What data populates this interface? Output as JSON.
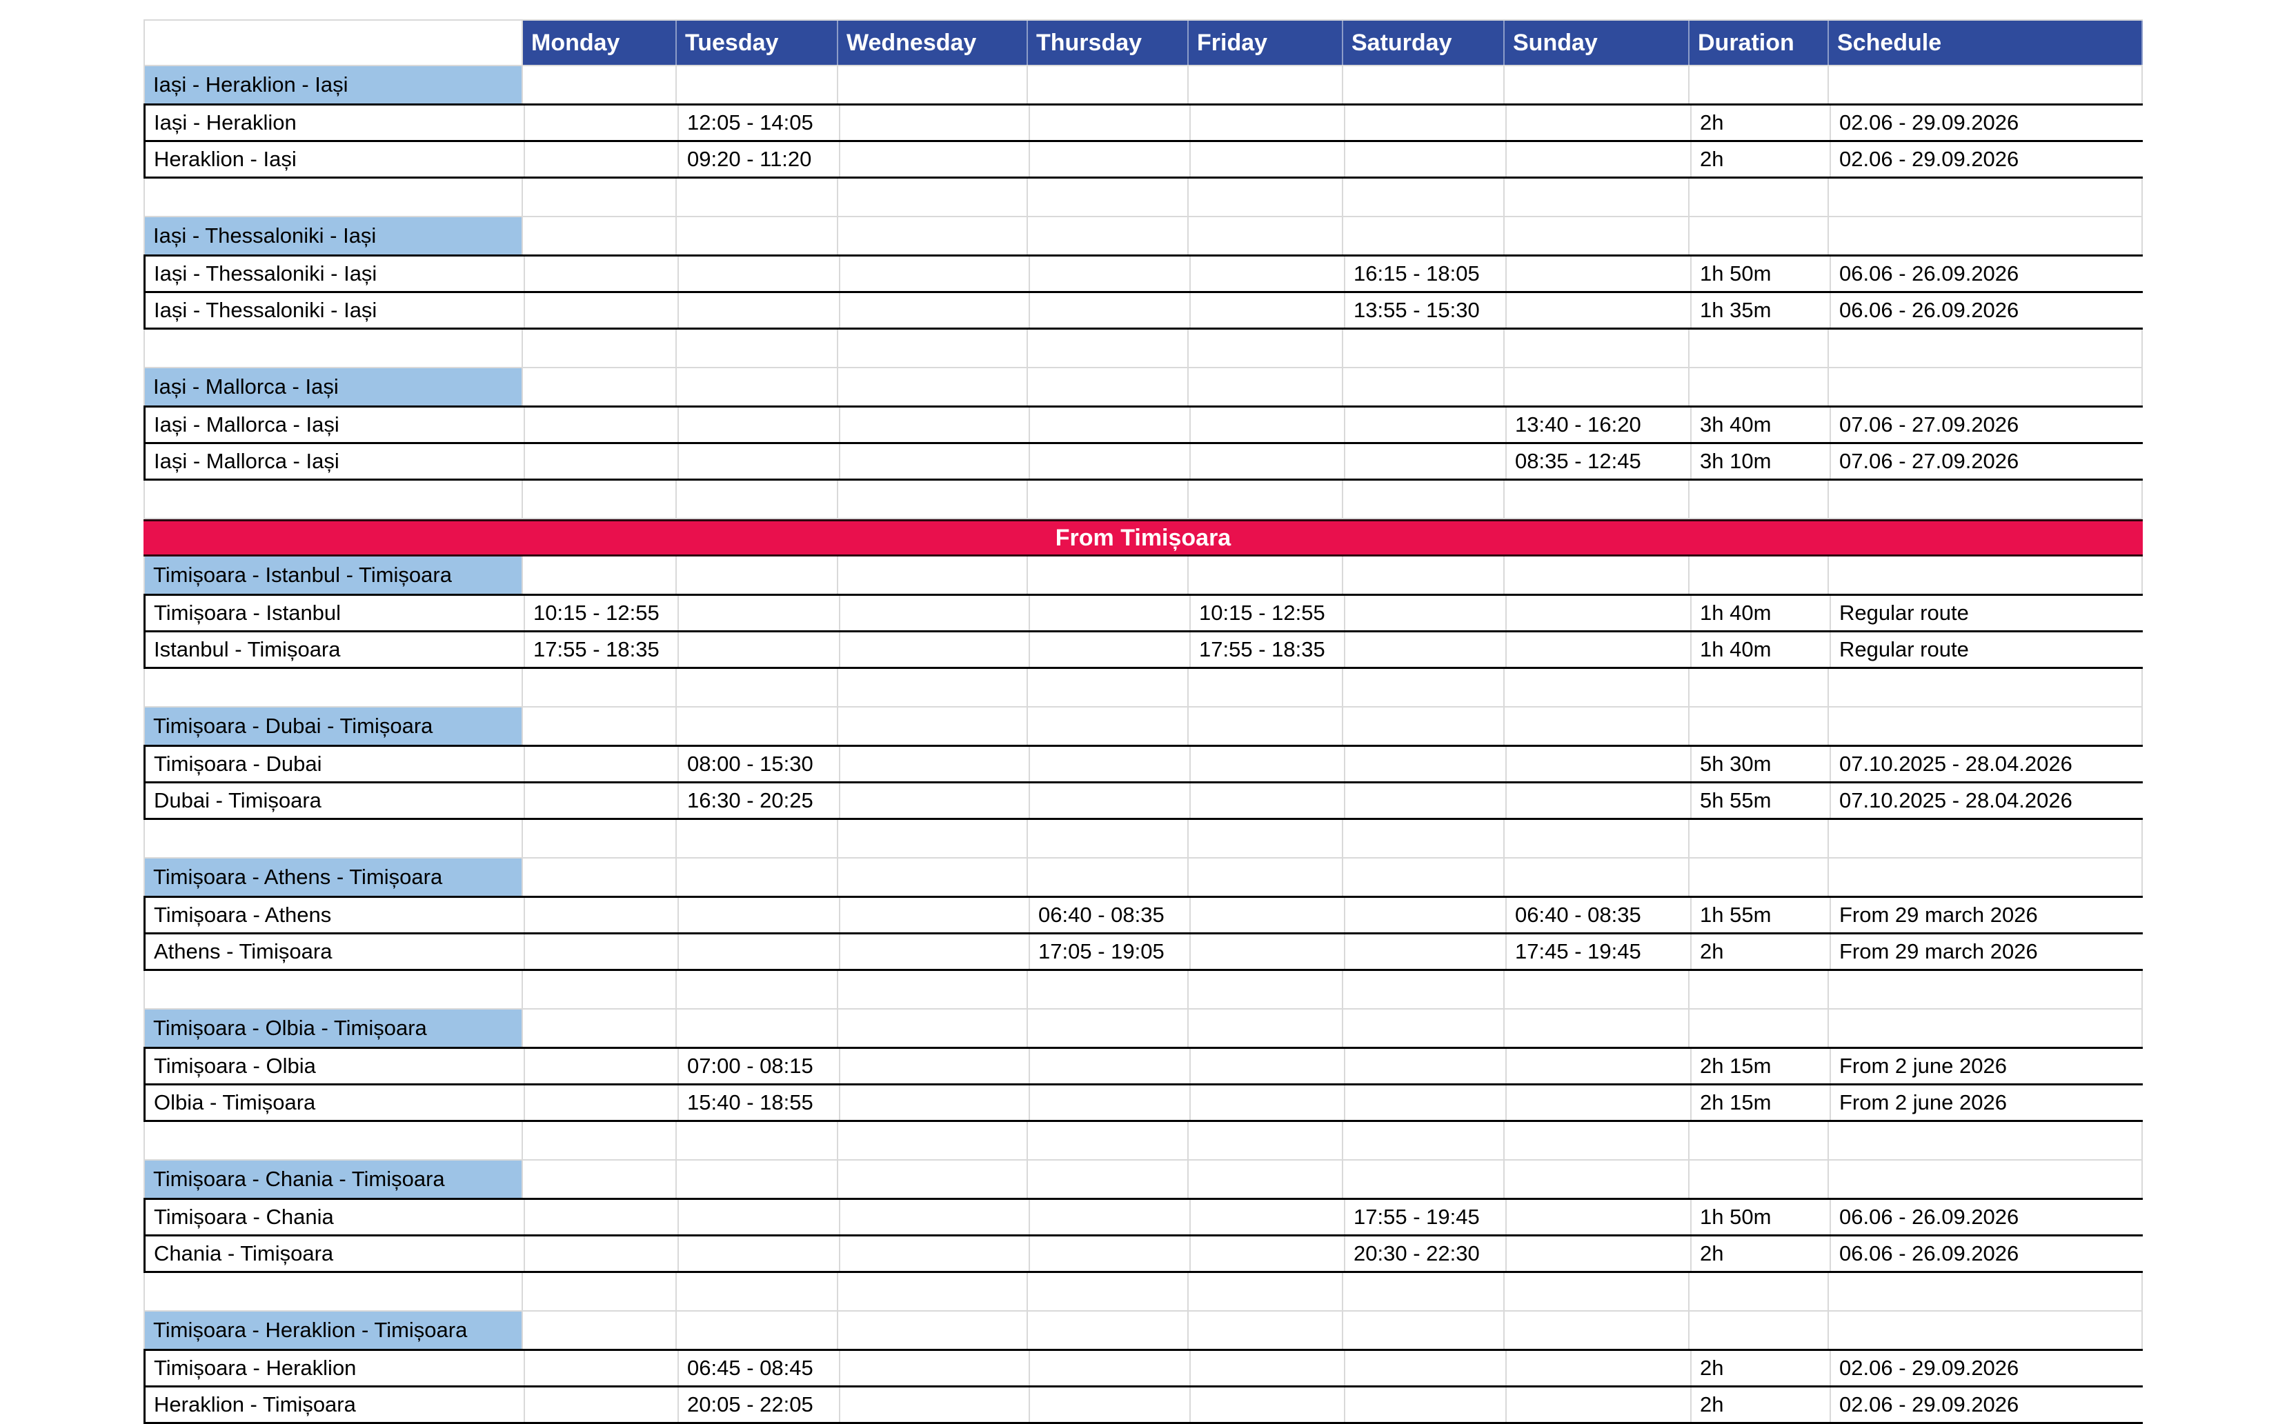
{
  "colors": {
    "header_bg": "#2F4B9C",
    "header_text": "#FFFFFF",
    "route_title_bg": "#9DC3E6",
    "banner_bg": "#E9104D",
    "banner_text": "#FFFFFF",
    "gridline": "#D9D9D9",
    "box_border": "#000000",
    "body_text": "#000000"
  },
  "columns": [
    "",
    "Monday",
    "Tuesday",
    "Wednesday",
    "Thursday",
    "Friday",
    "Saturday",
    "Sunday",
    "Duration",
    "Schedule"
  ],
  "banner": {
    "label": "From Timișoara",
    "before_group_index": 3
  },
  "groups": [
    {
      "title": "Iași - Heraklion - Iași",
      "flights": [
        {
          "route": "Iași - Heraklion",
          "times": {
            "Tuesday": "12:05 - 14:05"
          },
          "duration": "2h",
          "schedule": "02.06 - 29.09.2026"
        },
        {
          "route": "Heraklion - Iași",
          "times": {
            "Tuesday": "09:20 - 11:20"
          },
          "duration": "2h",
          "schedule": "02.06 - 29.09.2026"
        }
      ]
    },
    {
      "title": "Iași - Thessaloniki - Iași",
      "flights": [
        {
          "route": "Iași - Thessaloniki - Iași",
          "times": {
            "Saturday": "16:15 - 18:05"
          },
          "duration": "1h 50m",
          "schedule": "06.06 - 26.09.2026"
        },
        {
          "route": "Iași - Thessaloniki - Iași",
          "times": {
            "Saturday": "13:55 - 15:30"
          },
          "duration": "1h 35m",
          "schedule": "06.06 - 26.09.2026"
        }
      ]
    },
    {
      "title": "Iași - Mallorca - Iași",
      "flights": [
        {
          "route": "Iași - Mallorca - Iași",
          "times": {
            "Sunday": "13:40 - 16:20"
          },
          "duration": "3h 40m",
          "schedule": "07.06 - 27.09.2026"
        },
        {
          "route": "Iași - Mallorca - Iași",
          "times": {
            "Sunday": "08:35 - 12:45"
          },
          "duration": "3h 10m",
          "schedule": "07.06 - 27.09.2026"
        }
      ]
    },
    {
      "title": "Timișoara - Istanbul - Timișoara",
      "flights": [
        {
          "route": "Timișoara - Istanbul",
          "times": {
            "Monday": "10:15 - 12:55",
            "Friday": "10:15 - 12:55"
          },
          "duration": "1h 40m",
          "schedule": "Regular route"
        },
        {
          "route": "Istanbul - Timișoara",
          "times": {
            "Monday": "17:55 - 18:35",
            "Friday": "17:55 - 18:35"
          },
          "duration": "1h 40m",
          "schedule": "Regular route"
        }
      ]
    },
    {
      "title": "Timișoara - Dubai - Timișoara",
      "flights": [
        {
          "route": "Timișoara - Dubai",
          "times": {
            "Tuesday": "08:00 - 15:30"
          },
          "duration": "5h 30m",
          "schedule": "07.10.2025 - 28.04.2026"
        },
        {
          "route": "Dubai - Timișoara",
          "times": {
            "Tuesday": "16:30 - 20:25"
          },
          "duration": "5h 55m",
          "schedule": "07.10.2025 - 28.04.2026"
        }
      ]
    },
    {
      "title": "Timișoara - Athens - Timișoara",
      "flights": [
        {
          "route": "Timișoara - Athens",
          "times": {
            "Thursday": "06:40 - 08:35",
            "Sunday": "06:40 - 08:35"
          },
          "duration": "1h 55m",
          "schedule": "From 29 march 2026"
        },
        {
          "route": "Athens - Timișoara",
          "times": {
            "Thursday": "17:05 - 19:05",
            "Sunday": "17:45 - 19:45"
          },
          "duration": "2h",
          "schedule": "From 29 march 2026"
        }
      ]
    },
    {
      "title": "Timișoara - Olbia - Timișoara",
      "flights": [
        {
          "route": "Timișoara - Olbia",
          "times": {
            "Tuesday": "07:00 - 08:15"
          },
          "duration": "2h 15m",
          "schedule": "From 2 june 2026"
        },
        {
          "route": "Olbia - Timișoara",
          "times": {
            "Tuesday": "15:40 - 18:55"
          },
          "duration": "2h 15m",
          "schedule": "From 2 june 2026"
        }
      ]
    },
    {
      "title": "Timișoara - Chania - Timișoara",
      "flights": [
        {
          "route": "Timișoara - Chania",
          "times": {
            "Saturday": "17:55 - 19:45"
          },
          "duration": "1h 50m",
          "schedule": "06.06 - 26.09.2026"
        },
        {
          "route": "Chania - Timișoara",
          "times": {
            "Saturday": "20:30 - 22:30"
          },
          "duration": "2h",
          "schedule": "06.06 - 26.09.2026"
        }
      ]
    },
    {
      "title": "Timișoara - Heraklion - Timișoara",
      "flights": [
        {
          "route": "Timișoara - Heraklion",
          "times": {
            "Tuesday": "06:45 - 08:45"
          },
          "duration": "2h",
          "schedule": "02.06 - 29.09.2026"
        },
        {
          "route": "Heraklion - Timișoara",
          "times": {
            "Tuesday": "20:05 - 22:05"
          },
          "duration": "2h",
          "schedule": "02.06 - 29.09.2026"
        }
      ]
    }
  ]
}
